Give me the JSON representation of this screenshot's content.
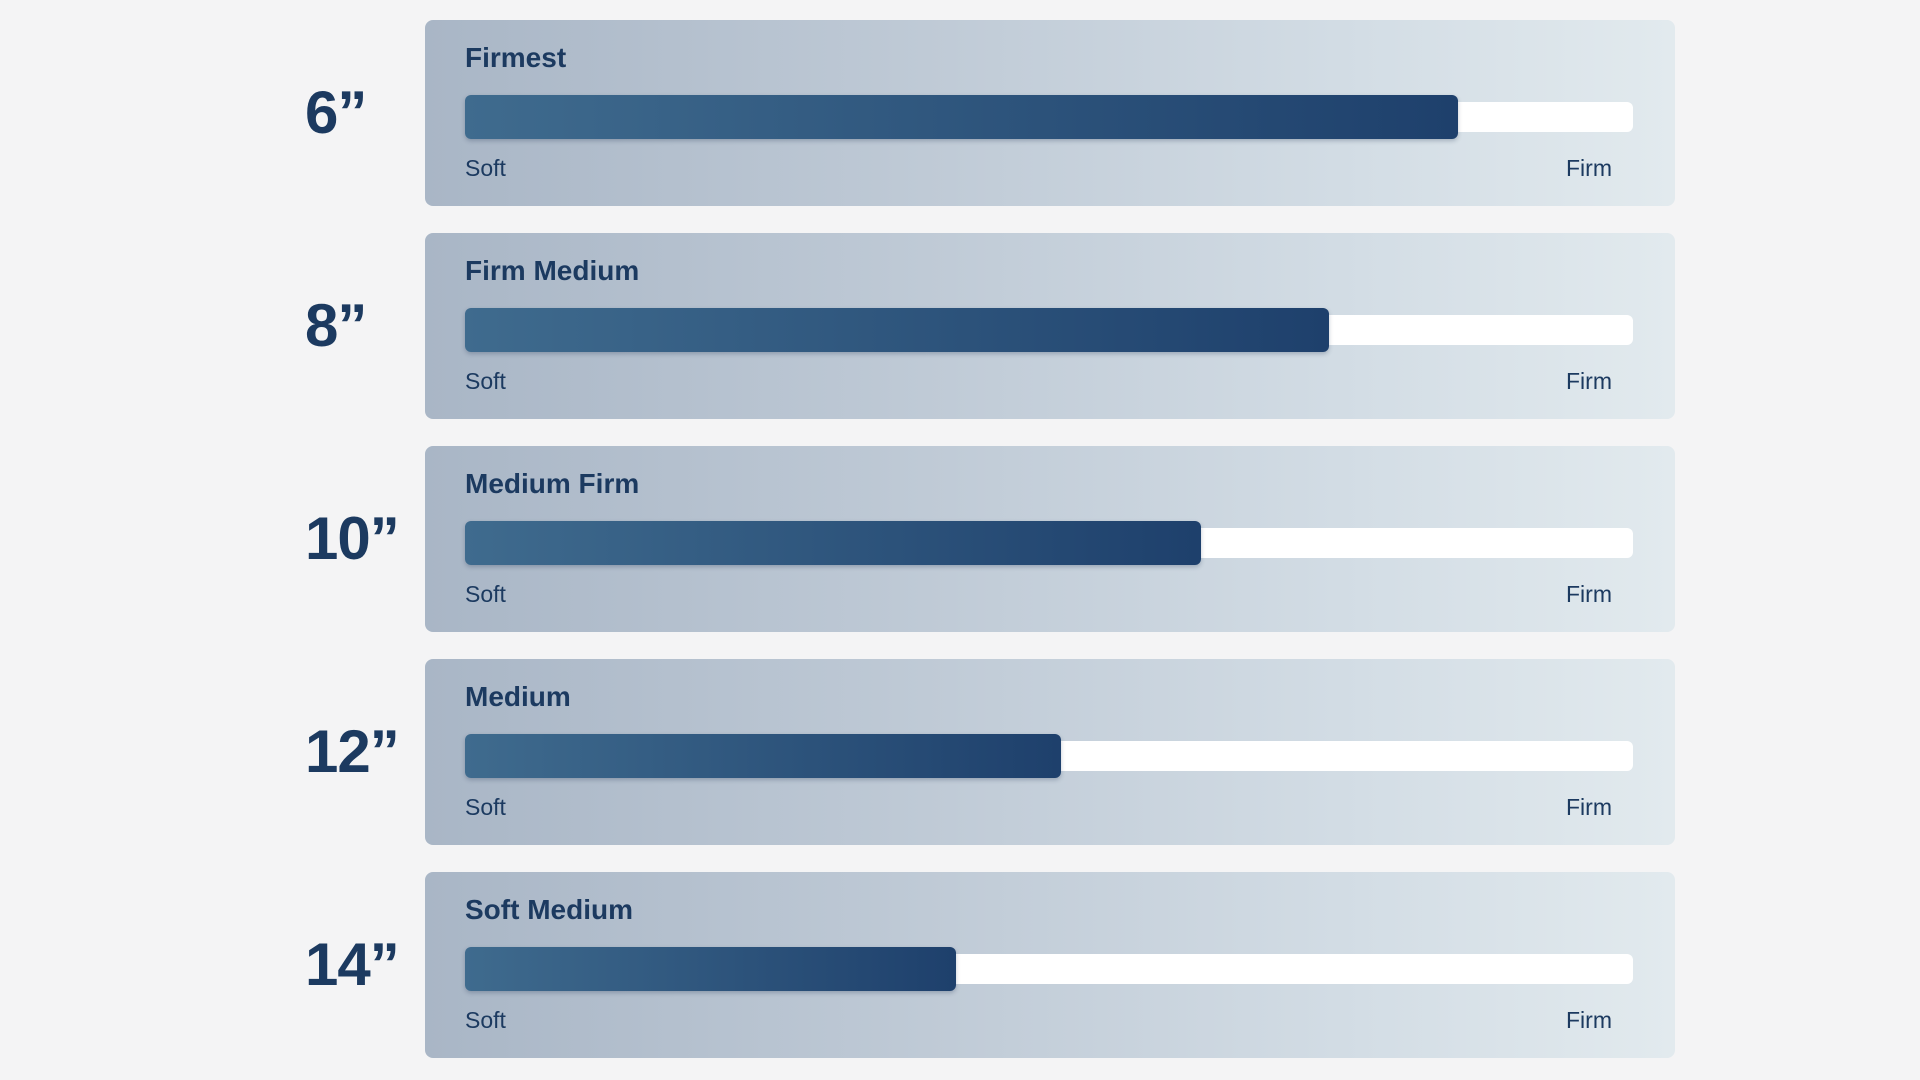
{
  "chart_data": {
    "type": "bar",
    "orientation": "horizontal",
    "title": "",
    "xlim": [
      0,
      100
    ],
    "scale_labels": {
      "min": "Soft",
      "max": "Firm"
    },
    "colors": {
      "fill_start": "#3f6b8e",
      "fill_end": "#1e406c",
      "track": "#ffffff",
      "text": "#1c3a60"
    },
    "rows": [
      {
        "size": "6”",
        "level": "Firmest",
        "value": 85
      },
      {
        "size": "8”",
        "level": "Firm Medium",
        "value": 74
      },
      {
        "size": "10”",
        "level": "Medium Firm",
        "value": 63
      },
      {
        "size": "12”",
        "level": "Medium",
        "value": 51
      },
      {
        "size": "14”",
        "level": "Soft Medium",
        "value": 42
      }
    ]
  }
}
